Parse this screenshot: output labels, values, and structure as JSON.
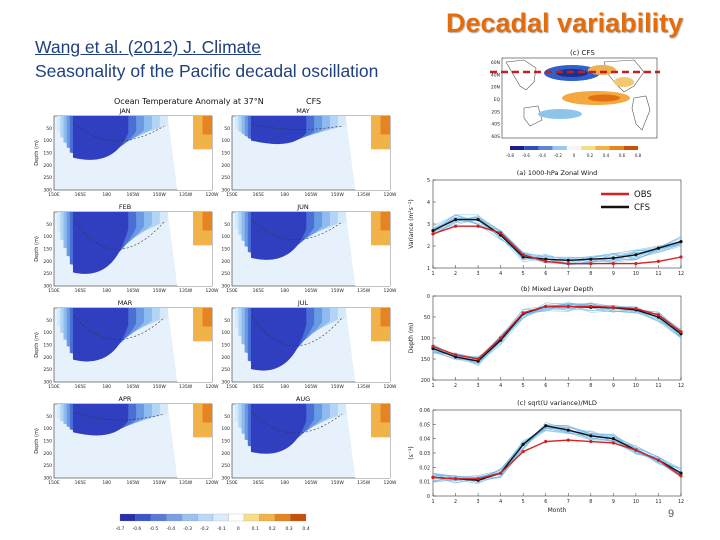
{
  "slide": {
    "title": "Decadal variability",
    "citation": "Wang et al. (2012) J. Climate",
    "subtitle": "Seasonality of the Pacific decadal oscillation",
    "page_number": "9"
  },
  "colors": {
    "title": "#e46c0a",
    "text": "#1f3f7f",
    "obs_line": "#d42020",
    "cfs_line": "#111111",
    "ensemble": "#6fb6e6"
  },
  "map": {
    "label": "(c) CFS",
    "lat_ticks": [
      "60N",
      "40N",
      "20N",
      "EQ",
      "20S",
      "40S",
      "60S"
    ],
    "colorbar_ticks": [
      "-0.8",
      "-0.6",
      "-0.4",
      "-0.2",
      "0",
      "0.2",
      "0.4",
      "0.6",
      "0.8"
    ]
  },
  "sections": {
    "title": "Ocean Temperature Anomaly at 37°N",
    "model": "CFS",
    "depth_ticks": [
      "50",
      "100",
      "150",
      "200",
      "250",
      "300"
    ],
    "lon_ticks": [
      "150E",
      "165E",
      "180",
      "165W",
      "150W",
      "135W",
      "120W"
    ],
    "ylabel": "Depth (m)",
    "months": [
      "JAN",
      "FEB",
      "MAR",
      "APR",
      "MAY",
      "JUN",
      "JUL",
      "AUG"
    ],
    "colorbar_ticks": [
      "-0.7",
      "-0.6",
      "-0.5",
      "-0.4",
      "-0.3",
      "-0.2",
      "-0.1",
      "0",
      "0.1",
      "0.2",
      "0.3",
      "0.4"
    ]
  },
  "chart_data": [
    {
      "type": "line",
      "title": "(a) 1000-hPa Zonal Wind",
      "ylabel": "Variance (m²s⁻²)",
      "x": [
        1,
        2,
        3,
        4,
        5,
        6,
        7,
        8,
        9,
        10,
        11,
        12
      ],
      "xlim": [
        1,
        12
      ],
      "ylim": [
        1,
        5
      ],
      "yticks": [
        1,
        2,
        3,
        4,
        5
      ],
      "legend": "top-right",
      "series": [
        {
          "name": "OBS",
          "values": [
            2.55,
            2.9,
            2.9,
            2.6,
            1.6,
            1.3,
            1.2,
            1.2,
            1.2,
            1.2,
            1.3,
            1.5
          ]
        },
        {
          "name": "CFS",
          "values": [
            2.7,
            3.2,
            3.2,
            2.5,
            1.5,
            1.4,
            1.35,
            1.4,
            1.45,
            1.6,
            1.9,
            2.2
          ]
        }
      ]
    },
    {
      "type": "line",
      "title": "(b) Mixed Layer Depth",
      "ylabel": "Depth (m)",
      "x": [
        1,
        2,
        3,
        4,
        5,
        6,
        7,
        8,
        9,
        10,
        11,
        12
      ],
      "xlim": [
        1,
        12
      ],
      "ylim": [
        200,
        0
      ],
      "yticks": [
        0,
        50,
        100,
        150,
        200
      ],
      "series": [
        {
          "name": "OBS",
          "values": [
            120,
            140,
            150,
            100,
            40,
            25,
            25,
            25,
            27,
            30,
            45,
            85
          ]
        },
        {
          "name": "CFS",
          "values": [
            125,
            145,
            155,
            105,
            42,
            25,
            25,
            27,
            28,
            33,
            50,
            90
          ]
        }
      ]
    },
    {
      "type": "line",
      "title": "(c) sqrt(U variance)/MLD",
      "ylabel": "(s⁻¹)",
      "xlabel": "Month",
      "x": [
        1,
        2,
        3,
        4,
        5,
        6,
        7,
        8,
        9,
        10,
        11,
        12
      ],
      "xlim": [
        1,
        12
      ],
      "ylim": [
        0,
        0.06
      ],
      "yticks": [
        0,
        0.01,
        0.02,
        0.03,
        0.04,
        0.05,
        0.06
      ],
      "series": [
        {
          "name": "OBS",
          "values": [
            0.013,
            0.012,
            0.012,
            0.016,
            0.031,
            0.038,
            0.039,
            0.038,
            0.037,
            0.032,
            0.025,
            0.014
          ]
        },
        {
          "name": "CFS",
          "values": [
            0.013,
            0.012,
            0.011,
            0.016,
            0.036,
            0.049,
            0.046,
            0.042,
            0.04,
            0.032,
            0.025,
            0.016
          ]
        }
      ]
    }
  ]
}
